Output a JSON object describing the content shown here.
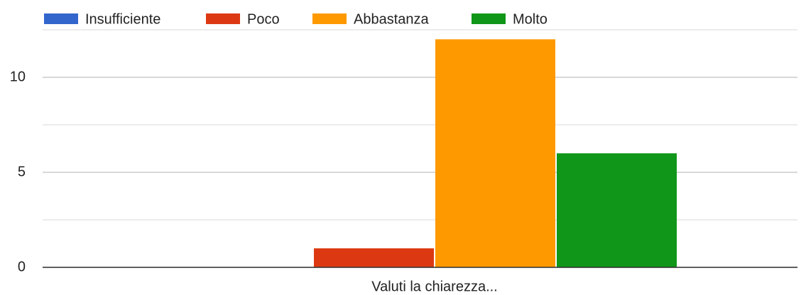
{
  "chart_data": {
    "type": "bar",
    "categories": [
      "Valuti la chiarezza..."
    ],
    "series": [
      {
        "name": "Insufficiente",
        "color": "#3366cc",
        "values": [
          0
        ]
      },
      {
        "name": "Poco",
        "color": "#dc3912",
        "values": [
          1
        ]
      },
      {
        "name": "Abbastanza",
        "color": "#ff9900",
        "values": [
          12
        ]
      },
      {
        "name": "Molto",
        "color": "#109618",
        "values": [
          6
        ]
      }
    ],
    "ylim": [
      0,
      12.5
    ],
    "yticks": [
      0,
      5,
      10
    ],
    "minor_yticks": [
      2.5,
      7.5,
      12.5
    ],
    "grid": true,
    "legend": "top"
  }
}
